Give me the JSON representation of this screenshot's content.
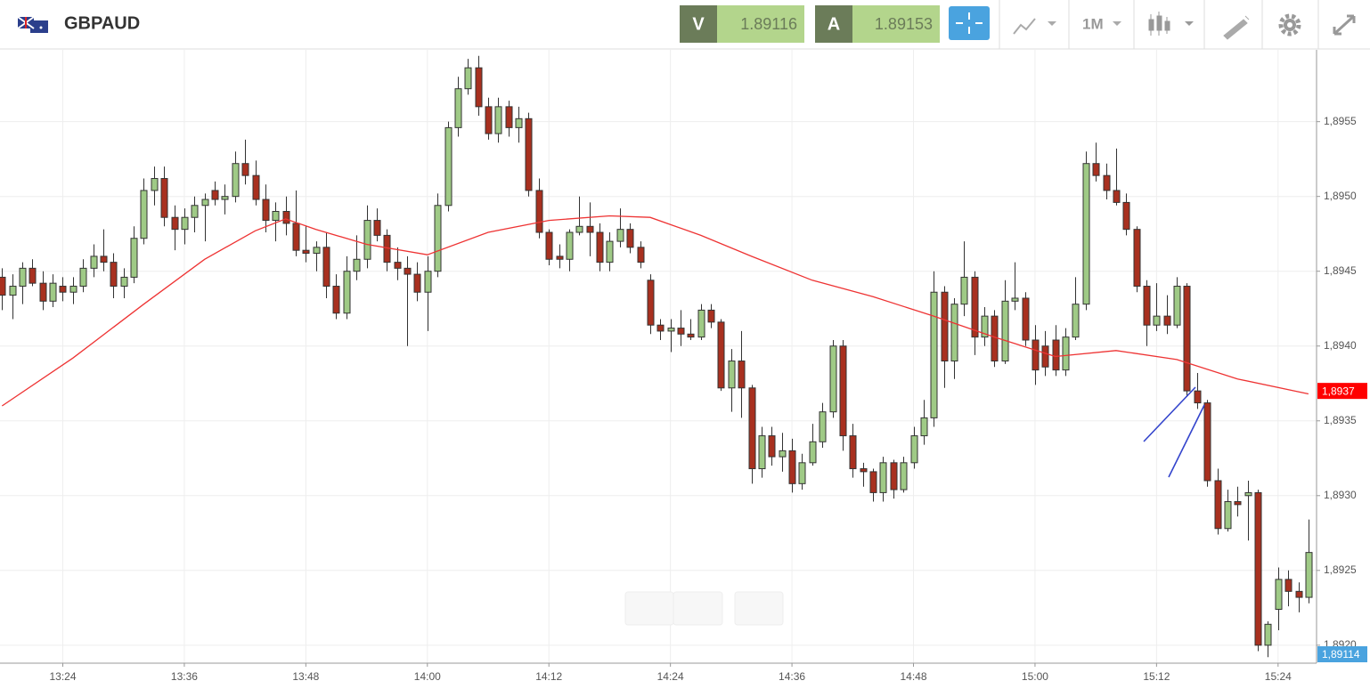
{
  "toolbar": {
    "symbol": "GBPAUD",
    "bid_label": "V",
    "bid": "1.89116",
    "ask_label": "A",
    "ask": "1.89153",
    "timeframe": "1M"
  },
  "chart_data": {
    "type": "candlestick",
    "x": [
      798,
      799,
      800,
      801,
      802,
      803,
      804,
      805,
      806,
      807,
      808,
      809,
      810,
      811,
      812,
      813,
      814,
      815,
      816,
      817,
      818,
      819,
      820,
      821,
      822,
      823,
      824,
      825,
      826,
      827,
      828,
      829,
      830,
      831,
      832,
      833,
      834,
      835,
      836,
      837,
      838,
      839,
      840,
      841,
      842,
      843,
      844,
      845,
      846,
      847,
      848,
      849,
      850,
      851,
      852,
      853,
      854,
      855,
      856,
      857,
      858,
      859,
      860,
      861,
      862,
      863,
      864,
      865,
      866,
      867,
      868,
      869,
      870,
      871,
      872,
      873,
      874,
      875,
      876,
      877,
      878,
      879,
      880,
      881,
      882,
      883,
      884,
      885,
      886,
      887,
      888,
      889,
      890,
      891,
      892,
      893,
      894,
      895,
      896,
      897,
      898,
      899,
      900,
      901,
      902,
      903,
      904,
      905,
      906,
      907,
      908,
      909,
      910,
      911,
      912,
      913,
      914,
      915,
      916,
      917,
      918,
      919,
      920,
      921,
      922,
      923,
      924,
      925,
      926,
      927
    ],
    "open": [
      1.89446,
      1.89434,
      1.8944,
      1.89452,
      1.89442,
      1.8943,
      1.8944,
      1.89436,
      1.8944,
      1.89452,
      1.8946,
      1.89456,
      1.8944,
      1.89446,
      1.89472,
      1.89504,
      1.89512,
      1.89486,
      1.89478,
      1.89486,
      1.89494,
      1.89504,
      1.89498,
      1.895,
      1.89522,
      1.89514,
      1.89498,
      1.89484,
      1.8949,
      1.89482,
      1.89464,
      1.89462,
      1.89466,
      1.8944,
      1.89422,
      1.8945,
      1.89458,
      1.89484,
      1.89474,
      1.89456,
      1.89452,
      1.89448,
      1.89436,
      1.8945,
      1.89494,
      1.89546,
      1.89572,
      1.89586,
      1.8956,
      1.89542,
      1.8956,
      1.89546,
      1.89552,
      1.89504,
      1.89476,
      1.8946,
      1.89458,
      1.89476,
      1.8948,
      1.89476,
      1.89456,
      1.8947,
      1.89478,
      1.89466,
      1.89444,
      1.89414,
      1.8941,
      1.89412,
      1.89408,
      1.89406,
      1.89424,
      1.89416,
      1.89372,
      1.8939,
      1.89372,
      1.89318,
      1.8934,
      1.89326,
      1.8933,
      1.89308,
      1.89322,
      1.89336,
      1.89356,
      1.894,
      1.8934,
      1.89318,
      1.89316,
      1.89302,
      1.89322,
      1.89304,
      1.89322,
      1.8934,
      1.89352,
      1.89436,
      1.8939,
      1.89428,
      1.89446,
      1.89406,
      1.8942,
      1.8939,
      1.8943,
      1.89432,
      1.89404,
      1.894,
      1.89404,
      1.89384,
      1.89406,
      1.89428,
      1.89522,
      1.89514,
      1.89504,
      1.89496,
      1.89478,
      1.8944,
      1.89414,
      1.8942,
      1.89414,
      1.8944,
      1.8937,
      1.89362,
      1.8931,
      1.89278,
      1.89296,
      1.893,
      1.89302,
      1.892,
      1.89224,
      1.89244,
      1.89236,
      1.89232
    ],
    "high": [
      1.89452,
      1.89448,
      1.89456,
      1.89458,
      1.8945,
      1.89448,
      1.89446,
      1.89446,
      1.89458,
      1.89468,
      1.89478,
      1.89462,
      1.89452,
      1.8948,
      1.89512,
      1.8952,
      1.8952,
      1.89494,
      1.89492,
      1.895,
      1.89502,
      1.8951,
      1.89508,
      1.8953,
      1.89538,
      1.89524,
      1.89508,
      1.89496,
      1.895,
      1.89504,
      1.8948,
      1.8947,
      1.89476,
      1.89448,
      1.8946,
      1.89474,
      1.89494,
      1.89492,
      1.89478,
      1.89466,
      1.8946,
      1.89456,
      1.8946,
      1.89502,
      1.8955,
      1.8958,
      1.89592,
      1.89594,
      1.89566,
      1.89566,
      1.89564,
      1.8956,
      1.89556,
      1.89512,
      1.89478,
      1.89468,
      1.89478,
      1.895,
      1.89496,
      1.89482,
      1.89476,
      1.89492,
      1.89482,
      1.8947,
      1.89448,
      1.89418,
      1.89418,
      1.89424,
      1.89418,
      1.89428,
      1.89428,
      1.89418,
      1.89398,
      1.8941,
      1.89374,
      1.89346,
      1.89346,
      1.89342,
      1.89338,
      1.89328,
      1.89348,
      1.89362,
      1.89404,
      1.89404,
      1.89348,
      1.89322,
      1.89318,
      1.89326,
      1.89324,
      1.89326,
      1.89346,
      1.89364,
      1.8945,
      1.8944,
      1.89432,
      1.8947,
      1.8945,
      1.89426,
      1.89424,
      1.89444,
      1.89456,
      1.89436,
      1.89414,
      1.8941,
      1.89414,
      1.89412,
      1.89446,
      1.8953,
      1.89536,
      1.89522,
      1.89532,
      1.89502,
      1.8948,
      1.89444,
      1.89442,
      1.89434,
      1.89446,
      1.89442,
      1.89382,
      1.89364,
      1.89318,
      1.89304,
      1.89306,
      1.8931,
      1.89304,
      1.89216,
      1.89252,
      1.8925,
      1.89242,
      1.89284
    ],
    "low": [
      1.89424,
      1.89418,
      1.89428,
      1.8944,
      1.89424,
      1.89426,
      1.8943,
      1.89428,
      1.89436,
      1.89446,
      1.8945,
      1.89432,
      1.89432,
      1.89442,
      1.89468,
      1.89494,
      1.8948,
      1.89464,
      1.89468,
      1.89476,
      1.8947,
      1.89494,
      1.89488,
      1.89496,
      1.89508,
      1.89494,
      1.89476,
      1.8947,
      1.89474,
      1.8946,
      1.89456,
      1.8945,
      1.89432,
      1.89418,
      1.89418,
      1.89444,
      1.89452,
      1.8947,
      1.8945,
      1.89444,
      1.894,
      1.8943,
      1.8941,
      1.89446,
      1.8949,
      1.8954,
      1.89568,
      1.89554,
      1.89538,
      1.89536,
      1.8954,
      1.89536,
      1.895,
      1.89472,
      1.89454,
      1.89452,
      1.8945,
      1.89474,
      1.8946,
      1.8945,
      1.8945,
      1.89466,
      1.89462,
      1.89452,
      1.89408,
      1.89404,
      1.89396,
      1.894,
      1.89404,
      1.89404,
      1.89412,
      1.8937,
      1.89356,
      1.89352,
      1.89308,
      1.89312,
      1.8932,
      1.89316,
      1.89302,
      1.89304,
      1.8932,
      1.89332,
      1.89352,
      1.8933,
      1.89312,
      1.89306,
      1.89296,
      1.89296,
      1.89298,
      1.89302,
      1.89318,
      1.89334,
      1.89346,
      1.89372,
      1.89378,
      1.8942,
      1.89394,
      1.894,
      1.89386,
      1.89388,
      1.89424,
      1.894,
      1.89374,
      1.8938,
      1.8938,
      1.8938,
      1.89404,
      1.89424,
      1.8951,
      1.89498,
      1.89494,
      1.89474,
      1.89436,
      1.894,
      1.8941,
      1.89408,
      1.89412,
      1.89366,
      1.89358,
      1.89306,
      1.89274,
      1.89276,
      1.89286,
      1.8927,
      1.89196,
      1.89192,
      1.8921,
      1.89226,
      1.89222,
      1.89228
    ],
    "close": [
      1.89434,
      1.8944,
      1.89452,
      1.89442,
      1.8943,
      1.89442,
      1.89436,
      1.8944,
      1.89452,
      1.8946,
      1.89456,
      1.8944,
      1.89446,
      1.89472,
      1.89504,
      1.89512,
      1.89486,
      1.89478,
      1.89486,
      1.89494,
      1.89498,
      1.89498,
      1.895,
      1.89522,
      1.89514,
      1.89498,
      1.89484,
      1.8949,
      1.89482,
      1.89464,
      1.89462,
      1.89466,
      1.8944,
      1.89422,
      1.8945,
      1.89458,
      1.89484,
      1.89474,
      1.89456,
      1.89452,
      1.89448,
      1.89436,
      1.8945,
      1.89494,
      1.89546,
      1.89572,
      1.89586,
      1.8956,
      1.89542,
      1.8956,
      1.89546,
      1.89552,
      1.89504,
      1.89476,
      1.89458,
      1.89458,
      1.89476,
      1.8948,
      1.89476,
      1.89456,
      1.8947,
      1.89478,
      1.89466,
      1.89456,
      1.89414,
      1.8941,
      1.89412,
      1.89408,
      1.89406,
      1.89424,
      1.89416,
      1.89372,
      1.8939,
      1.89372,
      1.89318,
      1.8934,
      1.89326,
      1.8933,
      1.89308,
      1.89322,
      1.89336,
      1.89356,
      1.894,
      1.8934,
      1.89318,
      1.89316,
      1.89302,
      1.89322,
      1.89304,
      1.89322,
      1.8934,
      1.89352,
      1.89436,
      1.8939,
      1.89428,
      1.89446,
      1.89406,
      1.8942,
      1.8939,
      1.8943,
      1.89432,
      1.89404,
      1.89384,
      1.89386,
      1.89384,
      1.89406,
      1.89428,
      1.89522,
      1.89514,
      1.89504,
      1.89496,
      1.89478,
      1.8944,
      1.89414,
      1.8942,
      1.89414,
      1.8944,
      1.8937,
      1.89362,
      1.8931,
      1.89278,
      1.89296,
      1.89294,
      1.89302,
      1.892,
      1.89214,
      1.89244,
      1.89236,
      1.89232,
      1.89262
    ],
    "up_color": "#9fca86",
    "down_color": "#a8301f",
    "ma": {
      "color": "#ee3333",
      "x": [
        798,
        805,
        812,
        818,
        823,
        826,
        829,
        834,
        840,
        846,
        852,
        858,
        862,
        867,
        872,
        878,
        884,
        890,
        896,
        902,
        908,
        914,
        920,
        927
      ],
      "values": [
        1.8936,
        1.89392,
        1.89428,
        1.89458,
        1.89477,
        1.89485,
        1.89478,
        1.89468,
        1.89461,
        1.89476,
        1.89484,
        1.89487,
        1.89486,
        1.89474,
        1.8946,
        1.89444,
        1.89433,
        1.8942,
        1.89406,
        1.89393,
        1.89397,
        1.89391,
        1.89378,
        1.89368
      ]
    },
    "price_tags": [
      {
        "value": 1.8937,
        "label": "1,8937",
        "color": "#ff0000"
      },
      {
        "value": 1.89114,
        "label": "1,89114",
        "color": "#4aa3df"
      }
    ],
    "xlim": [
      797.8,
      927.8
    ],
    "ylim": [
      1.89188,
      1.89598
    ],
    "xticks": [
      {
        "value": 804,
        "label": "13:24"
      },
      {
        "value": 816,
        "label": "13:36"
      },
      {
        "value": 828,
        "label": "13:48"
      },
      {
        "value": 840,
        "label": "14:00"
      },
      {
        "value": 852,
        "label": "14:12"
      },
      {
        "value": 864,
        "label": "14:24"
      },
      {
        "value": 876,
        "label": "14:36"
      },
      {
        "value": 888,
        "label": "14:48"
      },
      {
        "value": 900,
        "label": "15:00"
      },
      {
        "value": 912,
        "label": "15:12"
      },
      {
        "value": 924,
        "label": "15:24"
      }
    ],
    "yticks": [
      {
        "value": 1.892,
        "label": "1,8920"
      },
      {
        "value": 1.8925,
        "label": "1,8925"
      },
      {
        "value": 1.893,
        "label": "1,8930"
      },
      {
        "value": 1.8935,
        "label": "1,8935"
      },
      {
        "value": 1.894,
        "label": "1,8940"
      },
      {
        "value": 1.8945,
        "label": "1,8945"
      },
      {
        "value": 1.895,
        "label": "1,8950"
      },
      {
        "value": 1.8955,
        "label": "1,8955"
      }
    ],
    "grid": true
  }
}
